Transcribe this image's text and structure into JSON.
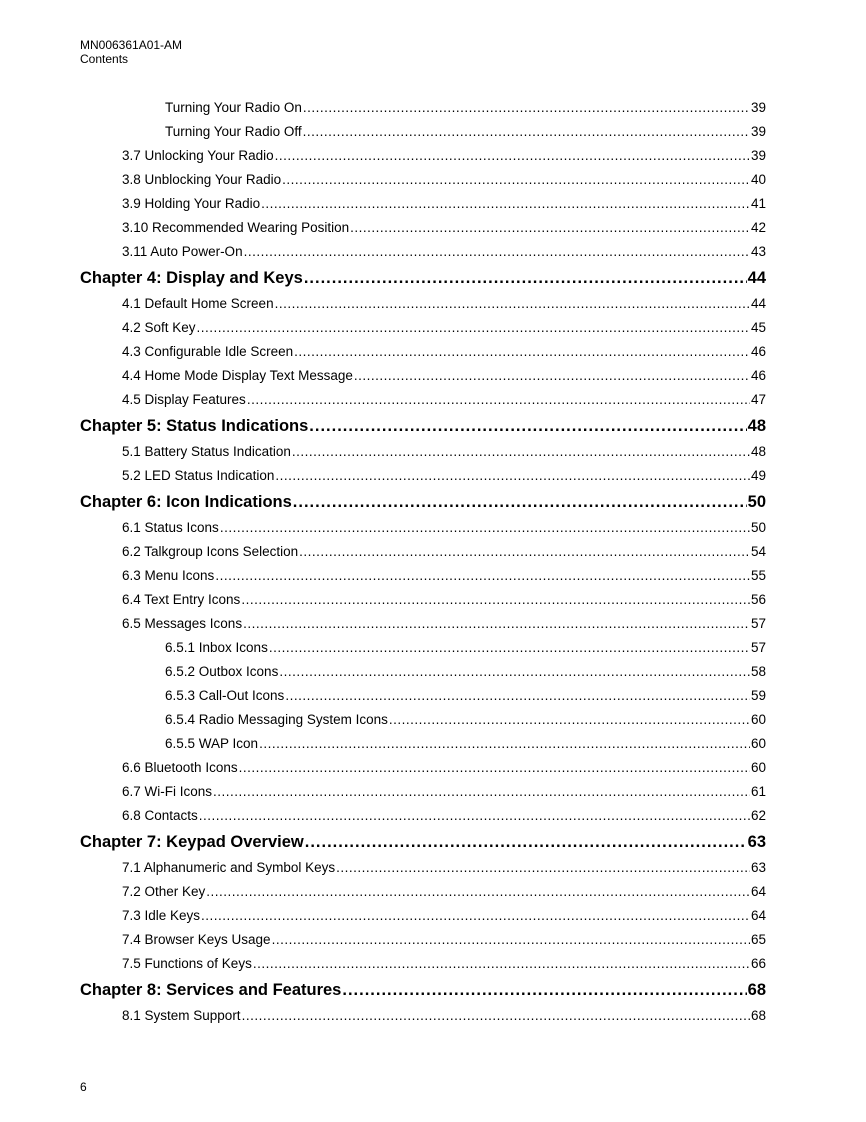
{
  "header": {
    "doc_id": "MN006361A01-AM",
    "section": "Contents"
  },
  "toc": [
    {
      "level": 3,
      "title": "Turning Your Radio On",
      "page": "39"
    },
    {
      "level": 3,
      "title": "Turning Your Radio Off",
      "page": "39"
    },
    {
      "level": 2,
      "title": "3.7 Unlocking Your Radio",
      "page": "39"
    },
    {
      "level": 2,
      "title": "3.8 Unblocking Your Radio",
      "page": "40"
    },
    {
      "level": 2,
      "title": "3.9 Holding Your Radio",
      "page": "41"
    },
    {
      "level": 2,
      "title": "3.10 Recommended Wearing Position",
      "page": "42"
    },
    {
      "level": 2,
      "title": "3.11 Auto Power-On",
      "page": "43"
    },
    {
      "level": 1,
      "title": "Chapter 4: Display and Keys",
      "page": "44"
    },
    {
      "level": 2,
      "title": "4.1 Default Home Screen",
      "page": "44"
    },
    {
      "level": 2,
      "title": "4.2 Soft Key",
      "page": "45"
    },
    {
      "level": 2,
      "title": "4.3 Configurable Idle Screen",
      "page": "46"
    },
    {
      "level": 2,
      "title": "4.4 Home Mode Display Text Message",
      "page": "46"
    },
    {
      "level": 2,
      "title": "4.5 Display Features",
      "page": "47"
    },
    {
      "level": 1,
      "title": "Chapter 5: Status Indications",
      "page": "48"
    },
    {
      "level": 2,
      "title": "5.1 Battery Status Indication",
      "page": "48"
    },
    {
      "level": 2,
      "title": "5.2 LED Status Indication",
      "page": "49"
    },
    {
      "level": 1,
      "title": "Chapter 6: Icon Indications",
      "page": "50"
    },
    {
      "level": 2,
      "title": "6.1 Status Icons",
      "page": "50"
    },
    {
      "level": 2,
      "title": "6.2 Talkgroup Icons Selection",
      "page": "54"
    },
    {
      "level": 2,
      "title": "6.3 Menu Icons",
      "page": "55"
    },
    {
      "level": 2,
      "title": "6.4 Text Entry Icons",
      "page": "56"
    },
    {
      "level": 2,
      "title": "6.5 Messages Icons",
      "page": "57"
    },
    {
      "level": 3,
      "title": "6.5.1 Inbox Icons",
      "page": "57"
    },
    {
      "level": 3,
      "title": "6.5.2 Outbox Icons",
      "page": "58"
    },
    {
      "level": 3,
      "title": "6.5.3 Call-Out Icons",
      "page": "59"
    },
    {
      "level": 3,
      "title": "6.5.4 Radio Messaging System Icons",
      "page": "60"
    },
    {
      "level": 3,
      "title": "6.5.5 WAP Icon",
      "page": "60"
    },
    {
      "level": 2,
      "title": "6.6 Bluetooth Icons",
      "page": "60"
    },
    {
      "level": 2,
      "title": "6.7 Wi-Fi Icons",
      "page": "61"
    },
    {
      "level": 2,
      "title": "6.8 Contacts",
      "page": "62"
    },
    {
      "level": 1,
      "title": "Chapter 7: Keypad Overview",
      "page": "63"
    },
    {
      "level": 2,
      "title": "7.1 Alphanumeric and Symbol Keys",
      "page": "63"
    },
    {
      "level": 2,
      "title": "7.2 Other Key",
      "page": "64"
    },
    {
      "level": 2,
      "title": "7.3 Idle Keys",
      "page": "64"
    },
    {
      "level": 2,
      "title": "7.4 Browser Keys Usage",
      "page": "65"
    },
    {
      "level": 2,
      "title": "7.5 Functions of Keys",
      "page": "66"
    },
    {
      "level": 1,
      "title": "Chapter 8: Services and Features",
      "page": "68"
    },
    {
      "level": 2,
      "title": "8.1 System Support",
      "page": "68"
    }
  ],
  "footer": {
    "page_number": "6"
  }
}
